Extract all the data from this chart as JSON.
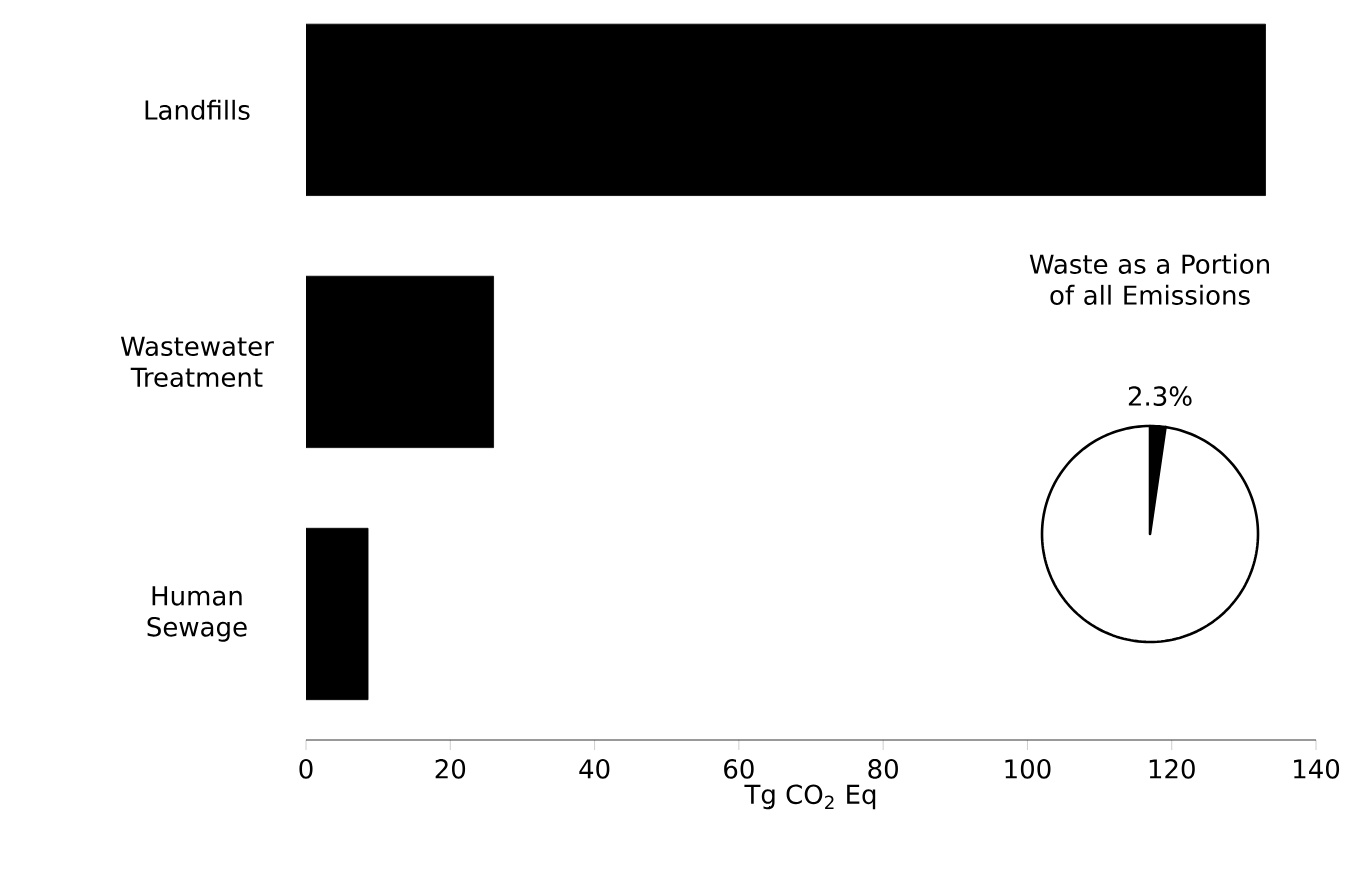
{
  "chart_data": [
    {
      "type": "bar",
      "orientation": "horizontal",
      "categories": [
        "Landfills",
        "Wastewater Treatment",
        "Human Sewage"
      ],
      "values": [
        133,
        26,
        8.6
      ],
      "color": "#000000",
      "xlabel": "Tg CO$_{2}$ Eq",
      "xlim": [
        0,
        140
      ],
      "xticks": [
        0,
        20,
        40,
        60,
        80,
        100,
        120,
        140
      ]
    },
    {
      "type": "pie",
      "title": "Waste as a Portion of all Emissions",
      "categories": [
        null,
        null
      ],
      "values": [
        2.3,
        97.7
      ],
      "colors": [
        "#000000",
        "#ffffff"
      ],
      "value_labels": [
        "2.3%",
        null
      ]
    }
  ]
}
